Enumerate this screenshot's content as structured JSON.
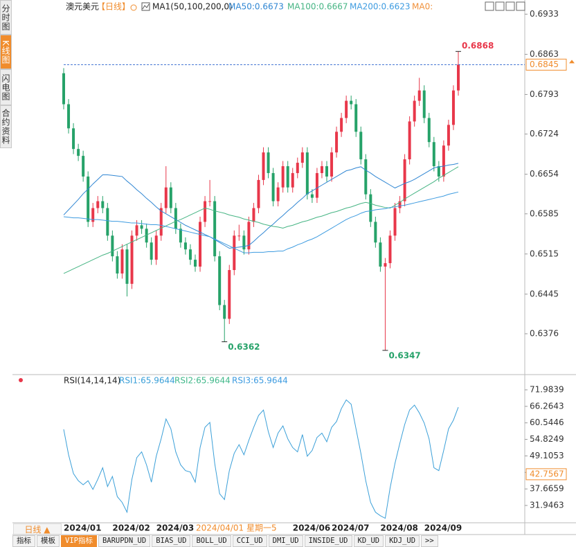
{
  "ui": {
    "side_tabs": [
      "分时图",
      "K线图",
      "闪电图",
      "合约资料"
    ],
    "period_tab": "日线 ▲",
    "toolbar": [
      "指标",
      "模板",
      "VIP指标",
      "BARUPDN_UD",
      "BIAS_UD",
      "BOLL_UD",
      "CCI_UD",
      "DMI_UD",
      "INSIDE_UD",
      "KD_UD",
      "KDJ_UD",
      ">>"
    ]
  },
  "chart_data": [
    {
      "type": "candlestick",
      "title": "澳元美元",
      "period": "【日线】",
      "indicator": "MA1(50,100,200,0)",
      "extra_legend": [
        {
          "name": "MA0:",
          "color": "#f0903a"
        }
      ],
      "categories": [
        "2024/01",
        null,
        null,
        null,
        null,
        null,
        null,
        null,
        null,
        null,
        "2024/02",
        null,
        null,
        null,
        null,
        null,
        null,
        null,
        null,
        "2024/03",
        null,
        null,
        null,
        null,
        null,
        null,
        null,
        null,
        null,
        null,
        null,
        null,
        null,
        null,
        null,
        null,
        null,
        null,
        null,
        null,
        null,
        null,
        null,
        null,
        null,
        null,
        null,
        "2024/06",
        null,
        null,
        null,
        null,
        null,
        null,
        null,
        "2024/07",
        null,
        null,
        null,
        null,
        null,
        null,
        null,
        null,
        null,
        "2024/08",
        null,
        null,
        null,
        null,
        null,
        null,
        null,
        null,
        "2024/09",
        null,
        null,
        null,
        null,
        null,
        null,
        null
      ],
      "crosshair_label": "2024/04/01 星期一5",
      "open": [
        0.683,
        0.6776,
        0.6734,
        0.6698,
        0.6686,
        0.665,
        0.6571,
        0.6595,
        0.6607,
        0.6595,
        0.6547,
        0.6511,
        0.6481,
        0.6523,
        0.6463,
        0.6547,
        0.6565,
        0.6559,
        0.6535,
        0.6505,
        0.6547,
        0.6595,
        0.6631,
        0.6595,
        0.6559,
        0.6535,
        0.6523,
        0.6505,
        0.6493,
        0.6571,
        0.6607,
        0.6607,
        0.6511,
        0.6426,
        0.6402,
        0.6487,
        0.6547,
        0.6547,
        0.6523,
        0.6571,
        0.6595,
        0.6644,
        0.6692,
        0.6656,
        0.6607,
        0.6631,
        0.6668,
        0.6631,
        0.6656,
        0.6674,
        0.6692,
        0.6619,
        0.6613,
        0.6656,
        0.6668,
        0.665,
        0.6692,
        0.6728,
        0.6752,
        0.6782,
        0.6776,
        0.6728,
        0.668,
        0.6619,
        0.6571,
        0.6535,
        0.6493,
        0.6499,
        0.6547,
        0.6595,
        0.6607,
        0.668,
        0.6746,
        0.6782,
        0.68,
        0.6752,
        0.671,
        0.6668,
        0.665,
        0.6704,
        0.674,
        0.68
      ],
      "high": [
        0.6839,
        0.6785,
        0.6743,
        0.6707,
        0.6695,
        0.6659,
        0.6604,
        0.6616,
        0.6616,
        0.6604,
        0.6556,
        0.652,
        0.6532,
        0.6532,
        0.6556,
        0.6574,
        0.6574,
        0.6568,
        0.6544,
        0.6556,
        0.6604,
        0.6668,
        0.664,
        0.6604,
        0.6568,
        0.6544,
        0.6532,
        0.6514,
        0.658,
        0.6616,
        0.6644,
        0.6616,
        0.652,
        0.6435,
        0.6496,
        0.6556,
        0.6566,
        0.6556,
        0.658,
        0.6604,
        0.6653,
        0.6701,
        0.6701,
        0.6665,
        0.664,
        0.6677,
        0.6677,
        0.6665,
        0.6683,
        0.6701,
        0.6701,
        0.6628,
        0.6665,
        0.6677,
        0.6677,
        0.6701,
        0.6737,
        0.6761,
        0.6791,
        0.6791,
        0.6785,
        0.6737,
        0.6689,
        0.6628,
        0.658,
        0.6544,
        0.6508,
        0.6556,
        0.6604,
        0.6616,
        0.6689,
        0.6755,
        0.6791,
        0.6822,
        0.6809,
        0.6761,
        0.6719,
        0.6677,
        0.6713,
        0.6749,
        0.6809,
        0.6868
      ],
      "low": [
        0.6767,
        0.6725,
        0.6689,
        0.6677,
        0.6641,
        0.6562,
        0.6562,
        0.6586,
        0.6586,
        0.6538,
        0.6502,
        0.6472,
        0.6472,
        0.6441,
        0.6454,
        0.6538,
        0.655,
        0.6526,
        0.6496,
        0.6496,
        0.6538,
        0.6586,
        0.6586,
        0.655,
        0.6526,
        0.6514,
        0.6496,
        0.6484,
        0.6484,
        0.6562,
        0.6598,
        0.6502,
        0.6417,
        0.6362,
        0.6393,
        0.6478,
        0.6538,
        0.6514,
        0.6514,
        0.6562,
        0.6586,
        0.6635,
        0.6647,
        0.6598,
        0.6598,
        0.6622,
        0.6622,
        0.6622,
        0.6647,
        0.6665,
        0.661,
        0.6604,
        0.6604,
        0.6647,
        0.6641,
        0.6641,
        0.6683,
        0.6719,
        0.6743,
        0.6767,
        0.6719,
        0.6671,
        0.661,
        0.6562,
        0.6526,
        0.6484,
        0.6347,
        0.649,
        0.6538,
        0.6586,
        0.6598,
        0.6671,
        0.6737,
        0.6773,
        0.6743,
        0.6701,
        0.6659,
        0.6641,
        0.6641,
        0.6695,
        0.6731,
        0.6791
      ],
      "close": [
        0.6776,
        0.6734,
        0.6698,
        0.6686,
        0.665,
        0.6571,
        0.6595,
        0.6607,
        0.6595,
        0.6547,
        0.6511,
        0.6481,
        0.6523,
        0.6463,
        0.6547,
        0.6565,
        0.6559,
        0.6535,
        0.6505,
        0.6547,
        0.6595,
        0.6631,
        0.6595,
        0.6559,
        0.6535,
        0.6523,
        0.6505,
        0.6493,
        0.6571,
        0.6607,
        0.6607,
        0.6511,
        0.6426,
        0.6402,
        0.6487,
        0.6547,
        0.6547,
        0.6523,
        0.6571,
        0.6595,
        0.6644,
        0.6692,
        0.6656,
        0.6607,
        0.6631,
        0.6668,
        0.6631,
        0.6656,
        0.6674,
        0.6692,
        0.6619,
        0.6613,
        0.6656,
        0.6668,
        0.665,
        0.6692,
        0.6728,
        0.6752,
        0.6782,
        0.6776,
        0.6728,
        0.668,
        0.6619,
        0.6571,
        0.6535,
        0.6493,
        0.6499,
        0.6547,
        0.6595,
        0.6607,
        0.668,
        0.6746,
        0.6782,
        0.68,
        0.6752,
        0.671,
        0.6668,
        0.665,
        0.6704,
        0.674,
        0.68,
        0.6845
      ],
      "up_color": "#e8374a",
      "down_color": "#26a269",
      "series": [
        {
          "name": "MA50:0.6673",
          "color": "#2f86d3",
          "values": [
            0.6583,
            0.6592,
            0.6601,
            0.661,
            0.662,
            0.6628,
            0.6637,
            0.6645,
            0.6653,
            0.6653,
            0.6652,
            0.6651,
            0.665,
            0.6642,
            0.6635,
            0.6627,
            0.662,
            0.6612,
            0.6605,
            0.6597,
            0.659,
            0.6585,
            0.658,
            0.6575,
            0.657,
            0.6565,
            0.6561,
            0.6557,
            0.6553,
            0.6549,
            0.6545,
            0.654,
            0.6535,
            0.653,
            0.6525,
            0.6526,
            0.6527,
            0.6528,
            0.653,
            0.6537,
            0.6545,
            0.6552,
            0.656,
            0.6567,
            0.6575,
            0.6582,
            0.659,
            0.6597,
            0.6605,
            0.6612,
            0.662,
            0.6625,
            0.663,
            0.6635,
            0.664,
            0.6645,
            0.665,
            0.6655,
            0.666,
            0.6662,
            0.6665,
            0.6667,
            0.6661,
            0.6656,
            0.665,
            0.6645,
            0.664,
            0.6635,
            0.663,
            0.6634,
            0.6638,
            0.6641,
            0.6645,
            0.665,
            0.6655,
            0.666,
            0.6665,
            0.6667,
            0.6668,
            0.667,
            0.6671,
            0.6673
          ]
        },
        {
          "name": "MA100:0.6667",
          "color": "#45b483",
          "values": [
            0.6481,
            0.6485,
            0.6489,
            0.6493,
            0.6497,
            0.6501,
            0.6505,
            0.6509,
            0.6513,
            0.6516,
            0.652,
            0.6524,
            0.6528,
            0.6532,
            0.6536,
            0.654,
            0.6544,
            0.6548,
            0.6552,
            0.6556,
            0.656,
            0.6564,
            0.6568,
            0.6572,
            0.6575,
            0.6579,
            0.6583,
            0.6587,
            0.6591,
            0.6595,
            0.6593,
            0.659,
            0.6588,
            0.6586,
            0.6583,
            0.6581,
            0.6579,
            0.6576,
            0.6574,
            0.6572,
            0.657,
            0.6567,
            0.6565,
            0.6563,
            0.6562,
            0.656,
            0.6563,
            0.6565,
            0.6568,
            0.6571,
            0.6573,
            0.6576,
            0.6579,
            0.6581,
            0.6584,
            0.6587,
            0.6589,
            0.6592,
            0.6595,
            0.6597,
            0.66,
            0.6603,
            0.6605,
            0.6603,
            0.66,
            0.6598,
            0.6596,
            0.6595,
            0.66,
            0.6605,
            0.6611,
            0.6616,
            0.6621,
            0.6626,
            0.6631,
            0.6636,
            0.6641,
            0.6647,
            0.6652,
            0.6657,
            0.6662,
            0.6667
          ]
        },
        {
          "name": "MA200:0.6623",
          "color": "#3d9be0",
          "values": [
            0.658,
            0.6579,
            0.6578,
            0.6578,
            0.6577,
            0.6576,
            0.6575,
            0.6575,
            0.6574,
            0.6573,
            0.6572,
            0.6572,
            0.6571,
            0.657,
            0.6569,
            0.6569,
            0.6568,
            0.6567,
            0.6566,
            0.6566,
            0.6565,
            0.6563,
            0.6561,
            0.6559,
            0.6557,
            0.6555,
            0.6553,
            0.6551,
            0.6549,
            0.6547,
            0.6545,
            0.6541,
            0.6537,
            0.6533,
            0.6529,
            0.6525,
            0.6521,
            0.6517,
            0.6517,
            0.6518,
            0.6518,
            0.6518,
            0.6519,
            0.6519,
            0.652,
            0.652,
            0.6524,
            0.6527,
            0.6531,
            0.6534,
            0.6538,
            0.6541,
            0.6545,
            0.655,
            0.6555,
            0.656,
            0.6565,
            0.657,
            0.6575,
            0.6579,
            0.6582,
            0.6586,
            0.6589,
            0.659,
            0.6592,
            0.6593,
            0.6594,
            0.6596,
            0.6597,
            0.6599,
            0.66,
            0.6602,
            0.6604,
            0.6606,
            0.6608,
            0.661,
            0.6612,
            0.6614,
            0.6616,
            0.6619,
            0.6621,
            0.6623
          ]
        }
      ],
      "ylim": [
        0.6306,
        0.6948
      ],
      "yticks": [
        0.6933,
        0.6863,
        0.6793,
        0.6724,
        0.6654,
        0.6585,
        0.6515,
        0.6445,
        0.6376
      ],
      "last_price": 0.6845,
      "grid": false
    },
    {
      "type": "line",
      "title": "RSI(14,14,14)",
      "series": [
        {
          "name": "RSI1:65.9644",
          "color": "#3a9fd8",
          "values": [
            58.3,
            49.5,
            43.0,
            40.5,
            39.1,
            40.5,
            37.5,
            41.0,
            45.0,
            38.5,
            42.0,
            35.0,
            33.0,
            29.6,
            41.0,
            48.5,
            50.5,
            46.0,
            40.0,
            49.0,
            55.0,
            61.9,
            58.5,
            50.5,
            46.0,
            44.0,
            43.5,
            40.0,
            52.0,
            59.0,
            60.7,
            46.5,
            36.0,
            34.0,
            44.0,
            50.0,
            53.0,
            49.5,
            54.5,
            59.0,
            63.1,
            65.0,
            57.5,
            52.0,
            57.0,
            59.5,
            55.0,
            52.0,
            50.5,
            56.5,
            49.0,
            51.0,
            55.5,
            57.0,
            54.0,
            59.0,
            61.0,
            65.5,
            68.5,
            67.0,
            58.5,
            50.0,
            40.5,
            33.0,
            29.6,
            28.4,
            27.5,
            38.0,
            46.5,
            53.5,
            60.0,
            65.0,
            66.7,
            64.0,
            60.5,
            55.0,
            45.0,
            44.0,
            51.0,
            58.5,
            61.5,
            65.9644
          ]
        }
      ],
      "extra_legend": [
        {
          "name": "RSI2:65.9644",
          "color": "#41b88a"
        },
        {
          "name": "RSI3:65.9644",
          "color": "#3d9be0"
        }
      ],
      "ylim": [
        25.95,
        76.3
      ],
      "yticks": [
        71.9839,
        66.2643,
        60.5446,
        54.8249,
        49.1053,
        43.3856,
        37.6659,
        31.9463
      ],
      "crosshair_value": 42.7567,
      "grid": false
    }
  ]
}
